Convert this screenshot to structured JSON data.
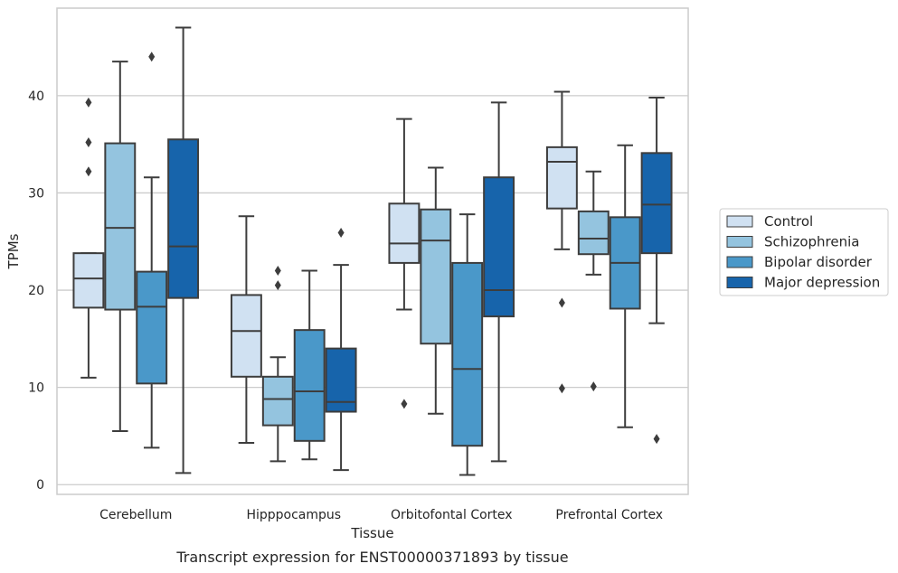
{
  "chart_data": {
    "type": "box",
    "ylabel": "TPMs",
    "xlabel": "Tissue",
    "caption": "Transcript expression for ENST00000371893 by tissue",
    "ylim": [
      -1,
      49
    ],
    "yticks": [
      0,
      10,
      20,
      30,
      40
    ],
    "grid": "horizontal",
    "legend_position": "right",
    "categories": [
      "Cerebellum",
      "Hipppocampus",
      "Orbitofontal Cortex",
      "Prefrontal Cortex"
    ],
    "series": [
      {
        "name": "Control",
        "color": "#d0e1f2",
        "boxes": [
          {
            "whisker_low": 11.0,
            "q1": 18.2,
            "median": 21.2,
            "q3": 23.8,
            "whisker_high": 23.8,
            "outliers": [
              32.2,
              35.2,
              39.3
            ]
          },
          {
            "whisker_low": 4.3,
            "q1": 11.1,
            "median": 15.8,
            "q3": 19.5,
            "whisker_high": 27.6,
            "outliers": []
          },
          {
            "whisker_low": 18.0,
            "q1": 22.8,
            "median": 24.8,
            "q3": 28.9,
            "whisker_high": 37.6,
            "outliers": [
              8.3
            ]
          },
          {
            "whisker_low": 24.2,
            "q1": 28.4,
            "median": 33.2,
            "q3": 34.7,
            "whisker_high": 40.4,
            "outliers": [
              9.9,
              18.7
            ]
          }
        ]
      },
      {
        "name": "Schizophrenia",
        "color": "#94c4df",
        "boxes": [
          {
            "whisker_low": 5.5,
            "q1": 18.0,
            "median": 26.4,
            "q3": 35.1,
            "whisker_high": 43.5,
            "outliers": []
          },
          {
            "whisker_low": 2.4,
            "q1": 6.1,
            "median": 8.8,
            "q3": 11.1,
            "whisker_high": 13.1,
            "outliers": [
              20.5,
              22.0
            ]
          },
          {
            "whisker_low": 7.3,
            "q1": 14.5,
            "median": 25.1,
            "q3": 28.3,
            "whisker_high": 32.6,
            "outliers": []
          },
          {
            "whisker_low": 21.6,
            "q1": 23.7,
            "median": 25.3,
            "q3": 28.1,
            "whisker_high": 32.2,
            "outliers": [
              10.1
            ]
          }
        ]
      },
      {
        "name": "Bipolar disorder",
        "color": "#4a98c9",
        "boxes": [
          {
            "whisker_low": 3.8,
            "q1": 10.4,
            "median": 18.3,
            "q3": 21.9,
            "whisker_high": 31.6,
            "outliers": [
              44.0
            ]
          },
          {
            "whisker_low": 2.6,
            "q1": 4.5,
            "median": 9.6,
            "q3": 15.9,
            "whisker_high": 22.0,
            "outliers": []
          },
          {
            "whisker_low": 1.0,
            "q1": 4.0,
            "median": 11.9,
            "q3": 22.8,
            "whisker_high": 27.8,
            "outliers": []
          },
          {
            "whisker_low": 5.9,
            "q1": 18.1,
            "median": 22.8,
            "q3": 27.5,
            "whisker_high": 34.9,
            "outliers": []
          }
        ]
      },
      {
        "name": "Major depression",
        "color": "#1764ab",
        "boxes": [
          {
            "whisker_low": 1.2,
            "q1": 19.2,
            "median": 24.5,
            "q3": 35.5,
            "whisker_high": 47.0,
            "outliers": []
          },
          {
            "whisker_low": 1.5,
            "q1": 7.5,
            "median": 8.5,
            "q3": 14.0,
            "whisker_high": 22.6,
            "outliers": [
              25.9
            ]
          },
          {
            "whisker_low": 2.4,
            "q1": 17.3,
            "median": 20.0,
            "q3": 31.6,
            "whisker_high": 39.3,
            "outliers": []
          },
          {
            "whisker_low": 16.6,
            "q1": 23.8,
            "median": 28.8,
            "q3": 34.1,
            "whisker_high": 39.8,
            "outliers": [
              4.7
            ]
          }
        ]
      }
    ]
  }
}
